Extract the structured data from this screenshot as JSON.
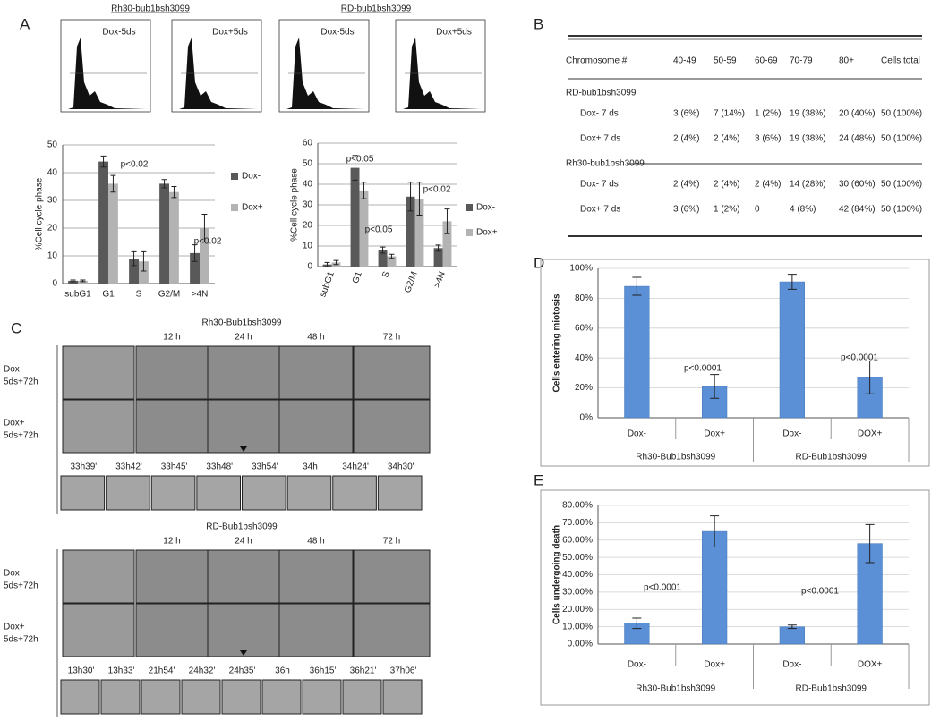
{
  "panel_labels": [
    "A",
    "B",
    "C",
    "D",
    "E"
  ],
  "panel_a": {
    "titles": [
      "Rh30-bub1bsh3099",
      "RD-bub1bsh3099"
    ],
    "histogram_labels": [
      "Dox-5ds",
      "Dox+5ds",
      "Dox-5ds",
      "Dox+5ds"
    ]
  },
  "chart_data": [
    {
      "type": "bar",
      "y_label": "%Cell cycle phase",
      "categories": [
        "subG1",
        "G1",
        "S",
        "G2/M",
        ">4N"
      ],
      "series": [
        {
          "name": "Dox-",
          "color": "#595959",
          "values": [
            1,
            44,
            9,
            36,
            11
          ],
          "errors": [
            0.3,
            2,
            2.5,
            1.5,
            3
          ]
        },
        {
          "name": "Dox+",
          "color": "#b3b3b3",
          "values": [
            1,
            36,
            8,
            33,
            20
          ],
          "errors": [
            0.3,
            3,
            3.5,
            2,
            5
          ]
        }
      ],
      "ylim": [
        0,
        50
      ],
      "yticks": [
        0,
        10,
        20,
        30,
        40,
        50
      ],
      "grid": true,
      "annotations": [
        "p<0.02",
        "p<0.02"
      ]
    },
    {
      "type": "bar",
      "y_label": "%Cell cycle phase",
      "categories": [
        "subG1",
        "G1",
        "S",
        "G2/M",
        ">4N"
      ],
      "series": [
        {
          "name": "Dox-",
          "color": "#595959",
          "values": [
            1,
            48,
            8,
            34,
            9
          ],
          "errors": [
            1,
            6,
            1.5,
            7,
            1.5
          ]
        },
        {
          "name": "Dox+",
          "color": "#b3b3b3",
          "values": [
            2,
            37,
            5,
            33,
            22
          ],
          "errors": [
            1,
            4,
            1,
            8,
            6
          ]
        }
      ],
      "ylim": [
        0,
        60
      ],
      "yticks": [
        0,
        10,
        20,
        30,
        40,
        50,
        60
      ],
      "grid": true,
      "annotations": [
        "p<0.05",
        "p<0.05",
        "p<0.02"
      ]
    },
    {
      "type": "bar",
      "y_label": "Cells entering miotosis",
      "categories": [
        "Dox-",
        "Dox+",
        "Dox-",
        "DOX+"
      ],
      "groups": [
        "Rh30-Bub1bsh3099",
        "RD-Bub1bsh3099"
      ],
      "color": "#5b8fd6",
      "values": [
        88,
        21,
        91,
        27
      ],
      "errors": [
        6,
        8,
        5,
        11
      ],
      "ylim": [
        0,
        100
      ],
      "yticks": [
        {
          "value": 0,
          "label": "0%"
        },
        {
          "value": 20,
          "label": "20%"
        },
        {
          "value": 40,
          "label": "40%"
        },
        {
          "value": 60,
          "label": "60%"
        },
        {
          "value": 80,
          "label": "80%"
        },
        {
          "value": 100,
          "label": "100%"
        }
      ],
      "grid": true,
      "annotations": [
        "p<0.0001",
        "p<0.0001"
      ]
    },
    {
      "type": "bar",
      "y_label": "Cells undergoing death",
      "categories": [
        "Dox-",
        "Dox+",
        "Dox-",
        "DOX+"
      ],
      "groups": [
        "Rh30-Bub1bsh3099",
        "RD-Bub1bsh3099"
      ],
      "color": "#5b8fd6",
      "values": [
        12,
        65,
        10,
        58
      ],
      "errors": [
        3,
        9,
        1,
        11
      ],
      "ylim": [
        0,
        80
      ],
      "yticks": [
        {
          "value": 0,
          "label": "0.00%"
        },
        {
          "value": 10,
          "label": "10.00%"
        },
        {
          "value": 20,
          "label": "20.00%"
        },
        {
          "value": 30,
          "label": "30.00%"
        },
        {
          "value": 40,
          "label": "40.00%"
        },
        {
          "value": 50,
          "label": "50.00%"
        },
        {
          "value": 60,
          "label": "60.00%"
        },
        {
          "value": 70,
          "label": "70.00%"
        },
        {
          "value": 80,
          "label": "80.00%"
        }
      ],
      "grid": true,
      "annotations": [
        "p<0.0001",
        "p<0.0001"
      ]
    }
  ],
  "table": {
    "header": [
      "Chromosome #",
      "40-49",
      "50-59",
      "60-69",
      "70-79",
      "80+",
      "Cells total"
    ],
    "sections": [
      {
        "title": "RD-bub1bsh3099",
        "rows": [
          [
            "Dox- 7 ds",
            "3 (6%)",
            "7 (14%)",
            "1 (2%)",
            "19 (38%)",
            "20 (40%)",
            "50 (100%)"
          ],
          [
            "Dox+ 7 ds",
            "2 (4%)",
            "2 (4%)",
            "3 (6%)",
            "19 (38%)",
            "24 (48%)",
            "50 (100%)"
          ]
        ]
      },
      {
        "title": "Rh30-bub1bsh3099",
        "rows": [
          [
            "Dox- 7 ds",
            "2 (4%)",
            "2 (4%)",
            "2 (4%)",
            "14 (28%)",
            "30 (60%)",
            "50 (100%)"
          ],
          [
            "Dox+ 7 ds",
            "3 (6%)",
            "1 (2%)",
            "0",
            "4 (8%)",
            "42 (84%)",
            "50 (100%)"
          ]
        ]
      }
    ]
  },
  "panel_c": {
    "blocks": [
      {
        "title": "Rh30-Bub1bsh3099",
        "times": [
          "12 h",
          "24 h",
          "48 h",
          "72 h"
        ],
        "rows": [
          [
            "Dox-",
            "5ds+72h"
          ],
          [
            "Dox+",
            "5ds+72h"
          ]
        ],
        "timelapse": [
          "33h39'",
          "33h42'",
          "33h45'",
          "33h48'",
          "33h54'",
          "34h",
          "34h24'",
          "34h30'"
        ]
      },
      {
        "title": "RD-Bub1bsh3099",
        "times": [
          "12 h",
          "24 h",
          "48 h",
          "72 h"
        ],
        "rows": [
          [
            "Dox-",
            "5ds+72h"
          ],
          [
            "Dox+",
            "5ds+72h"
          ]
        ],
        "timelapse": [
          "13h30'",
          "13h33'",
          "21h54'",
          "24h32'",
          "24h35'",
          "36h",
          "36h15'",
          "36h21'",
          "37h06'"
        ]
      }
    ]
  }
}
